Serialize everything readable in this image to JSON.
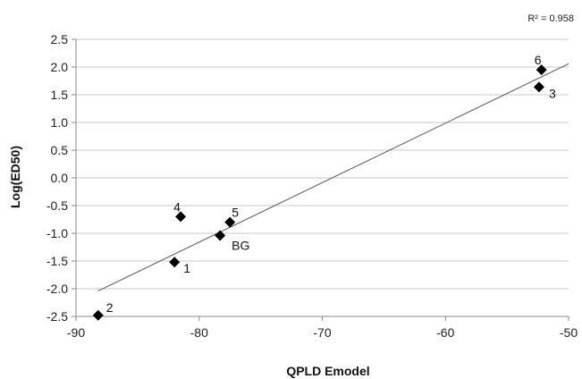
{
  "chart_data": {
    "type": "scatter",
    "title": "",
    "xlabel": "QPLD Emodel",
    "ylabel": "Log(ED50)",
    "xlim": [
      -90,
      -50
    ],
    "ylim": [
      -2.5,
      2.5
    ],
    "x_ticks": [
      -90,
      -80,
      -70,
      -60,
      -50
    ],
    "x_tick_labels": [
      "-90",
      "-80",
      "-70",
      "-60",
      "-50"
    ],
    "y_ticks": [
      2.5,
      2.0,
      1.5,
      1.0,
      0.5,
      0.0,
      -0.5,
      -1.0,
      -1.5,
      -2.0,
      -2.5
    ],
    "y_tick_labels": [
      "2.5",
      "2.0",
      "1.5",
      "1.0",
      "0.5",
      "0.0",
      "-0.5",
      "-1.0",
      "-1.5",
      "-2.0",
      "-2.5"
    ],
    "grid": "horizontal",
    "marker": "diamond",
    "marker_color": "#000000",
    "points": [
      {
        "label": "1",
        "x": -82.0,
        "y": -1.52
      },
      {
        "label": "2",
        "x": -88.2,
        "y": -2.48
      },
      {
        "label": "3",
        "x": -52.4,
        "y": 1.64
      },
      {
        "label": "4",
        "x": -81.5,
        "y": -0.7
      },
      {
        "label": "5",
        "x": -77.5,
        "y": -0.8
      },
      {
        "label": "6",
        "x": -52.2,
        "y": 1.95
      },
      {
        "label": "BG",
        "x": -78.3,
        "y": -1.04
      }
    ],
    "trendline": {
      "x": [
        -88.2,
        -50.0
      ],
      "y": [
        -2.04,
        2.06
      ],
      "r2_label": "R² = 0.958"
    }
  }
}
